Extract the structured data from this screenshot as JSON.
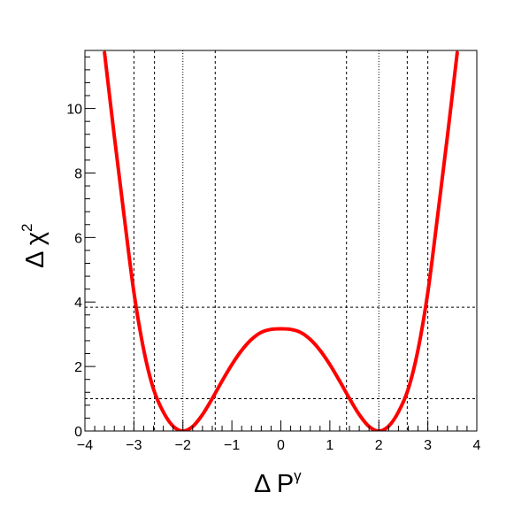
{
  "chart_data": {
    "type": "line",
    "xlabel": {
      "base": "Δ P",
      "sup": "γ"
    },
    "ylabel": {
      "base": "Δ χ",
      "sup": "2"
    },
    "xlim": [
      -4,
      4
    ],
    "ylim": [
      0,
      11.8
    ],
    "x_ticks": [
      -4,
      -3,
      -2,
      -1,
      0,
      1,
      2,
      3,
      4
    ],
    "y_ticks": [
      0,
      2,
      4,
      6,
      8,
      10
    ],
    "x_tick_labels": [
      "−4",
      "−3",
      "−2",
      "−1",
      "0",
      "1",
      "2",
      "3",
      "4"
    ],
    "y_tick_labels": [
      "0",
      "2",
      "4",
      "6",
      "8",
      "10"
    ],
    "grid": false,
    "curve_color": "#ff0000",
    "series": [
      {
        "x": [
          -3.6,
          -3.4,
          -3.2,
          -3.0,
          -2.8,
          -2.6,
          -2.4,
          -2.2,
          -2.0,
          -1.8,
          -1.6,
          -1.4,
          -1.2,
          -1.0,
          -0.8,
          -0.6,
          -0.4,
          -0.2,
          0.0,
          0.2,
          0.4,
          0.6,
          0.8,
          1.0,
          1.2,
          1.4,
          1.6,
          1.8,
          2.0,
          2.2,
          2.4,
          2.6,
          2.8,
          3.0,
          3.2,
          3.4,
          3.6
        ],
        "y": [
          11.73,
          9.14,
          6.67,
          4.3,
          2.52,
          1.3,
          0.59,
          0.15,
          0.0,
          0.14,
          0.51,
          1.01,
          1.55,
          2.06,
          2.5,
          2.84,
          3.06,
          3.15,
          3.17,
          3.15,
          3.06,
          2.84,
          2.5,
          2.06,
          1.55,
          1.01,
          0.51,
          0.14,
          0.0,
          0.15,
          0.59,
          1.3,
          2.52,
          4.3,
          6.67,
          9.14,
          11.73
        ]
      }
    ],
    "reference_lines": {
      "horizontal": [
        {
          "y": 1.0,
          "style": "dashed"
        },
        {
          "y": 3.84,
          "style": "dashed"
        }
      ],
      "vertical": [
        {
          "x": -3.0,
          "style": "dashed"
        },
        {
          "x": -2.58,
          "style": "dashed"
        },
        {
          "x": -2.0,
          "style": "dotted"
        },
        {
          "x": -1.34,
          "style": "dashed"
        },
        {
          "x": 1.34,
          "style": "dashed"
        },
        {
          "x": 2.0,
          "style": "dotted"
        },
        {
          "x": 2.58,
          "style": "dashed"
        },
        {
          "x": 3.0,
          "style": "dashed"
        }
      ]
    }
  }
}
